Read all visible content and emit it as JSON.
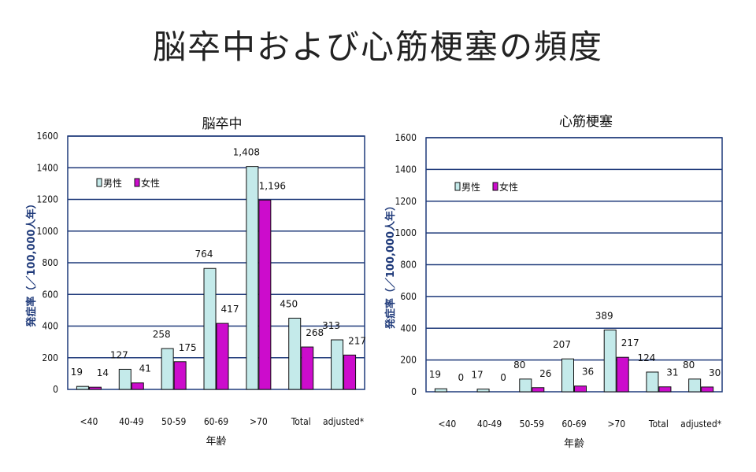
{
  "title": "脳卒中および心筋梗塞の頻度",
  "colors": {
    "male": "#c4eaea",
    "female": "#cc0ccc",
    "axis": "#1f3a7a",
    "grid": "#1f3a7a"
  },
  "chart_data": [
    {
      "type": "bar",
      "title": "脳卒中",
      "xlabel": "年齢",
      "ylabel": "発症率（／100,000人年）",
      "ylim": [
        0,
        1600
      ],
      "yticks": [
        "0",
        "200",
        "400",
        "600",
        "800",
        "1000",
        "1200",
        "1400",
        "1600"
      ],
      "categories": [
        "<40",
        "40-49",
        "50-59",
        "60-69",
        ">70",
        "Total",
        "adjusted*"
      ],
      "series": [
        {
          "name": "男性",
          "values": [
            19,
            127,
            258,
            764,
            1408,
            450,
            313
          ],
          "labels": [
            "19",
            "127",
            "258",
            "764",
            "1,408",
            "450",
            "313"
          ]
        },
        {
          "name": "女性",
          "values": [
            14,
            41,
            175,
            417,
            1196,
            268,
            217
          ],
          "labels": [
            "14",
            "41",
            "175",
            "417",
            "1,196",
            "268",
            "217"
          ]
        }
      ],
      "legend": "top-left",
      "grid": true
    },
    {
      "type": "bar",
      "title": "心筋梗塞",
      "xlabel": "年齢",
      "ylabel": "発症率（／100,000人年）",
      "ylim": [
        0,
        1600
      ],
      "yticks": [
        "0",
        "200",
        "400",
        "600",
        "800",
        "1000",
        "1200",
        "1400",
        "1600"
      ],
      "categories": [
        "<40",
        "40-49",
        "50-59",
        "60-69",
        ">70",
        "Total",
        "adjusted*"
      ],
      "series": [
        {
          "name": "男性",
          "values": [
            19,
            17,
            80,
            207,
            389,
            124,
            80
          ],
          "labels": [
            "19",
            "17",
            "80",
            "207",
            "389",
            "124",
            "80"
          ]
        },
        {
          "name": "女性",
          "values": [
            0,
            0,
            26,
            36,
            217,
            31,
            30
          ],
          "labels": [
            "0",
            "0",
            "26",
            "36",
            "217",
            "31",
            "30"
          ]
        }
      ],
      "legend": "top-left",
      "grid": true
    }
  ]
}
